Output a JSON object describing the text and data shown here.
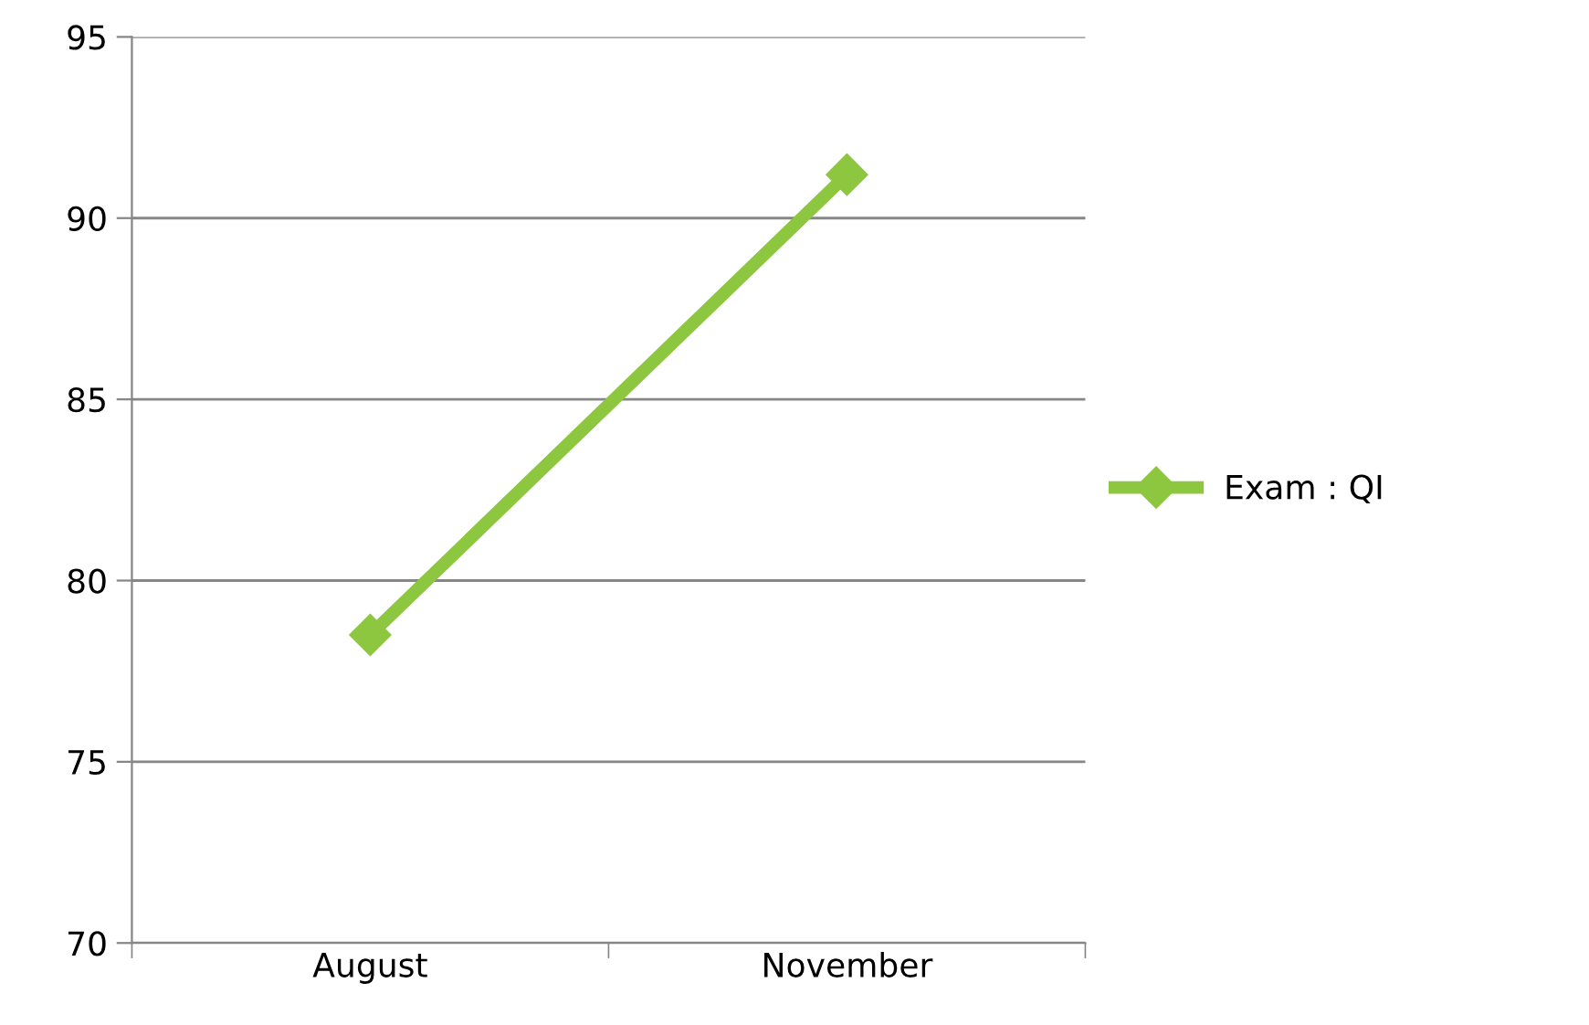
{
  "chart_data": {
    "type": "line",
    "categories": [
      "August",
      "November"
    ],
    "series": [
      {
        "name": "Exam : QI",
        "color": "#8dc63f",
        "values": [
          78.5,
          91.2
        ]
      }
    ],
    "ylim": [
      70,
      95
    ],
    "yticks": [
      70,
      75,
      80,
      85,
      90,
      95
    ],
    "grid": "y",
    "legend": "right",
    "marker": "diamond",
    "line_style": "solid"
  }
}
